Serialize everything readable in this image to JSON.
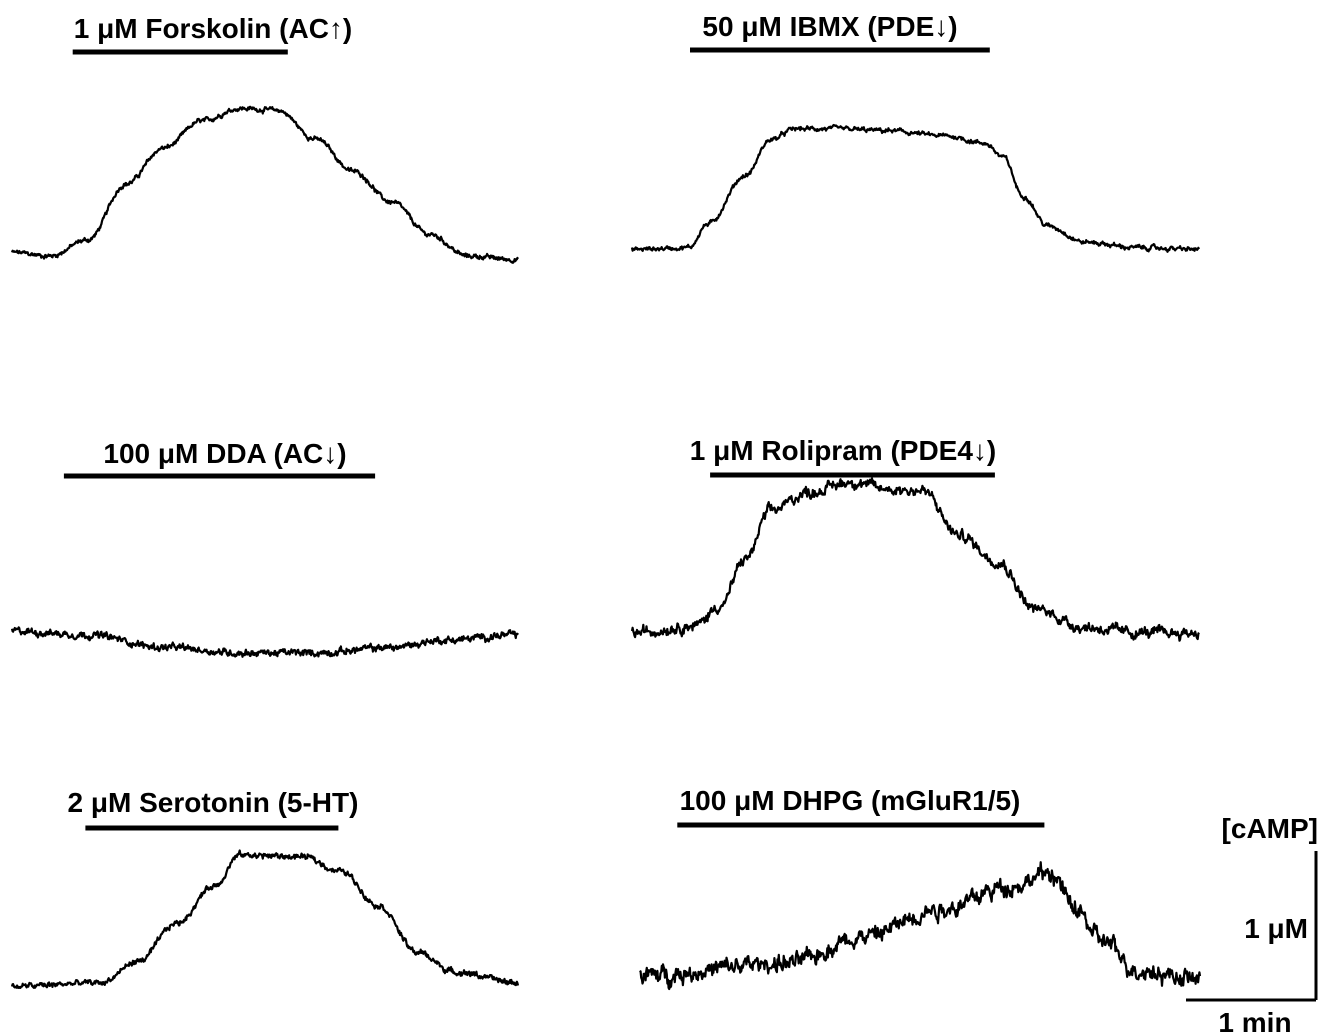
{
  "chart_data": [
    {
      "type": "line",
      "title": "1 μM Forskolin (AC↑)",
      "x": [
        0,
        0.3,
        0.6,
        0.9,
        1.2,
        1.5,
        1.8,
        2.1,
        2.4,
        2.7,
        3.0,
        3.3,
        3.6,
        4.0
      ],
      "y": [
        0.07,
        0.05,
        0.14,
        0.45,
        0.65,
        0.8,
        0.87,
        0.86,
        0.7,
        0.52,
        0.35,
        0.17,
        0.05,
        0.03
      ],
      "bar": [
        0.48,
        2.18
      ],
      "noise": 0.012
    },
    {
      "type": "line",
      "title": "50 μM IBMX (PDE↓)",
      "x": [
        0,
        0.45,
        0.6,
        0.9,
        1.1,
        1.3,
        1.6,
        2.0,
        2.5,
        2.8,
        2.95,
        3.1,
        3.3,
        3.6,
        4.0,
        4.5
      ],
      "y": [
        0.07,
        0.08,
        0.21,
        0.48,
        0.68,
        0.74,
        0.74,
        0.73,
        0.7,
        0.66,
        0.58,
        0.37,
        0.2,
        0.11,
        0.08,
        0.07
      ],
      "bar": [
        0.46,
        2.84
      ],
      "noise": 0.012
    },
    {
      "type": "line",
      "title": "100 μM DDA (AC↓)",
      "x": [
        0,
        0.6,
        1.2,
        1.8,
        2.4,
        3.0,
        3.4,
        4.0
      ],
      "y": [
        0.16,
        0.14,
        0.07,
        0.04,
        0.04,
        0.07,
        0.11,
        0.14
      ],
      "bar": [
        0.41,
        2.87
      ],
      "noise": 0.018
    },
    {
      "type": "line",
      "title": "1 μM Rolipram (PDE4↓)",
      "x": [
        0,
        0.5,
        0.7,
        0.9,
        1.1,
        1.4,
        1.75,
        2.0,
        2.3,
        2.6,
        2.9,
        3.2,
        3.6,
        4.0,
        4.5
      ],
      "y": [
        0.04,
        0.08,
        0.19,
        0.45,
        0.72,
        0.82,
        0.88,
        0.84,
        0.83,
        0.58,
        0.44,
        0.17,
        0.07,
        0.04,
        0.04
      ],
      "bar": [
        0.62,
        2.88
      ],
      "noise": 0.028
    },
    {
      "type": "line",
      "title": "2 μM Serotonin (5-HT)",
      "x": [
        0,
        0.7,
        1.0,
        1.3,
        1.6,
        1.8,
        2.3,
        2.6,
        2.9,
        3.2,
        3.5,
        4.0
      ],
      "y": [
        0.02,
        0.04,
        0.16,
        0.37,
        0.58,
        0.75,
        0.74,
        0.66,
        0.47,
        0.21,
        0.1,
        0.04
      ],
      "bar": [
        0.58,
        2.58
      ],
      "noise": 0.015
    },
    {
      "type": "line",
      "title": "100 μM DHPG (mGluR1/5)",
      "x": [
        0,
        1.2,
        1.8,
        2.4,
        3.0,
        3.3,
        3.5,
        3.7,
        4.0,
        4.5
      ],
      "y": [
        0.08,
        0.15,
        0.3,
        0.45,
        0.58,
        0.65,
        0.45,
        0.28,
        0.11,
        0.06
      ],
      "bar": [
        0.3,
        3.25
      ],
      "noise": 0.045
    }
  ],
  "scale": {
    "y_label": "[cAMP]",
    "y_value": "1 μM",
    "x_value": "1 min"
  }
}
